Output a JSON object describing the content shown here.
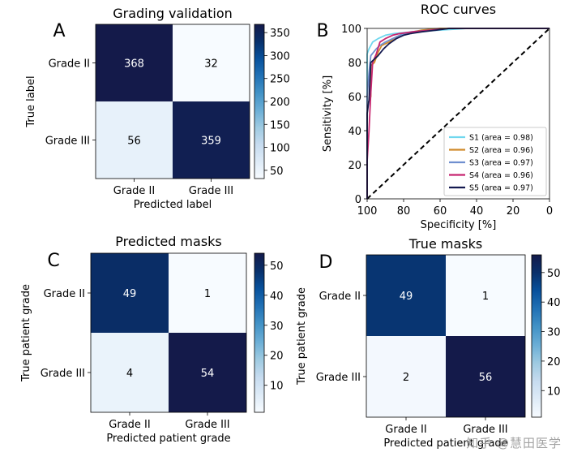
{
  "colors": {
    "cmap": [
      "#f7fbff",
      "#deebf7",
      "#c6dbef",
      "#9ecae1",
      "#6baed6",
      "#4292c6",
      "#2171b5",
      "#08519c",
      "#08306b",
      "#141a4a"
    ],
    "roc": [
      "#6fd7ee",
      "#d08a2a",
      "#6f8fcf",
      "#c7256f",
      "#141a50"
    ],
    "diag": "#000000"
  },
  "watermark": "知乎 @慧田医学",
  "chart_data": [
    {
      "type": "heatmap",
      "panel": "A",
      "title": "Grading validation",
      "xlabel": "Predicted label",
      "ylabel": "True label",
      "x_categories": [
        "Grade II",
        "Grade III"
      ],
      "y_categories": [
        "Grade II",
        "Grade III"
      ],
      "values": [
        [
          368,
          32
        ],
        [
          56,
          359
        ]
      ],
      "colorbar": {
        "min": 32,
        "max": 368,
        "ticks": [
          50,
          100,
          150,
          200,
          250,
          300,
          350
        ]
      }
    },
    {
      "type": "line",
      "panel": "B",
      "title": "ROC curves",
      "xlabel": "Specificity [%]",
      "ylabel": "Sensitivity [%]",
      "xlim": [
        100,
        0
      ],
      "ylim": [
        0,
        100
      ],
      "xticks": [
        100,
        80,
        60,
        40,
        20,
        0
      ],
      "yticks": [
        0,
        20,
        40,
        60,
        80,
        100
      ],
      "legend_position": "lower-right",
      "series": [
        {
          "name": "S1 (area = 0.98)",
          "points": [
            [
              100,
              0
            ],
            [
              100,
              85
            ],
            [
              99,
              88
            ],
            [
              97,
              92
            ],
            [
              94,
              94
            ],
            [
              90,
              96
            ],
            [
              85,
              97
            ],
            [
              75,
              98
            ],
            [
              60,
              99
            ],
            [
              45,
              100
            ],
            [
              0,
              100
            ]
          ]
        },
        {
          "name": "S2 (area = 0.96)",
          "points": [
            [
              100,
              0
            ],
            [
              100,
              55
            ],
            [
              98,
              60
            ],
            [
              98,
              78
            ],
            [
              96,
              80
            ],
            [
              94,
              86
            ],
            [
              92,
              90
            ],
            [
              88,
              92
            ],
            [
              84,
              95
            ],
            [
              80,
              97
            ],
            [
              70,
              99
            ],
            [
              60,
              100
            ],
            [
              0,
              100
            ]
          ]
        },
        {
          "name": "S3 (area = 0.97)",
          "points": [
            [
              100,
              0
            ],
            [
              100,
              60
            ],
            [
              99,
              74
            ],
            [
              98,
              84
            ],
            [
              95,
              88
            ],
            [
              93,
              90
            ],
            [
              90,
              92
            ],
            [
              86,
              94
            ],
            [
              82,
              96
            ],
            [
              76,
              98
            ],
            [
              65,
              99
            ],
            [
              55,
              100
            ],
            [
              0,
              100
            ]
          ]
        },
        {
          "name": "S4 (area = 0.96)",
          "points": [
            [
              100,
              0
            ],
            [
              100,
              22
            ],
            [
              99,
              40
            ],
            [
              98,
              62
            ],
            [
              97,
              80
            ],
            [
              95,
              85
            ],
            [
              93,
              92
            ],
            [
              90,
              94
            ],
            [
              86,
              96
            ],
            [
              82,
              97
            ],
            [
              75,
              98
            ],
            [
              65,
              99
            ],
            [
              55,
              100
            ],
            [
              0,
              100
            ]
          ]
        },
        {
          "name": "S5 (area = 0.97)",
          "points": [
            [
              100,
              0
            ],
            [
              100,
              50
            ],
            [
              99,
              58
            ],
            [
              98,
              80
            ],
            [
              96,
              82
            ],
            [
              94,
              84
            ],
            [
              91,
              88
            ],
            [
              88,
              91
            ],
            [
              84,
              94
            ],
            [
              80,
              96
            ],
            [
              76,
              97
            ],
            [
              70,
              98
            ],
            [
              62,
              99
            ],
            [
              55,
              100
            ],
            [
              0,
              100
            ]
          ]
        }
      ],
      "reference_line": {
        "points": [
          [
            100,
            0
          ],
          [
            0,
            100
          ]
        ],
        "style": "dashed"
      }
    },
    {
      "type": "heatmap",
      "panel": "C",
      "title": "Predicted masks",
      "xlabel": "Predicted patient grade",
      "ylabel": "True patient grade",
      "x_categories": [
        "Grade II",
        "Grade III"
      ],
      "y_categories": [
        "Grade II",
        "Grade III"
      ],
      "values": [
        [
          49,
          1
        ],
        [
          4,
          54
        ]
      ],
      "colorbar": {
        "min": 1,
        "max": 54,
        "ticks": [
          10,
          20,
          30,
          40,
          50
        ]
      }
    },
    {
      "type": "heatmap",
      "panel": "D",
      "title": "True masks",
      "xlabel": "Predicted patient grade",
      "ylabel": "True patient grade",
      "x_categories": [
        "Grade II",
        "Grade III"
      ],
      "y_categories": [
        "Grade II",
        "Grade III"
      ],
      "values": [
        [
          49,
          1
        ],
        [
          2,
          56
        ]
      ],
      "colorbar": {
        "min": 1,
        "max": 56,
        "ticks": [
          10,
          20,
          30,
          40,
          50
        ]
      }
    }
  ]
}
